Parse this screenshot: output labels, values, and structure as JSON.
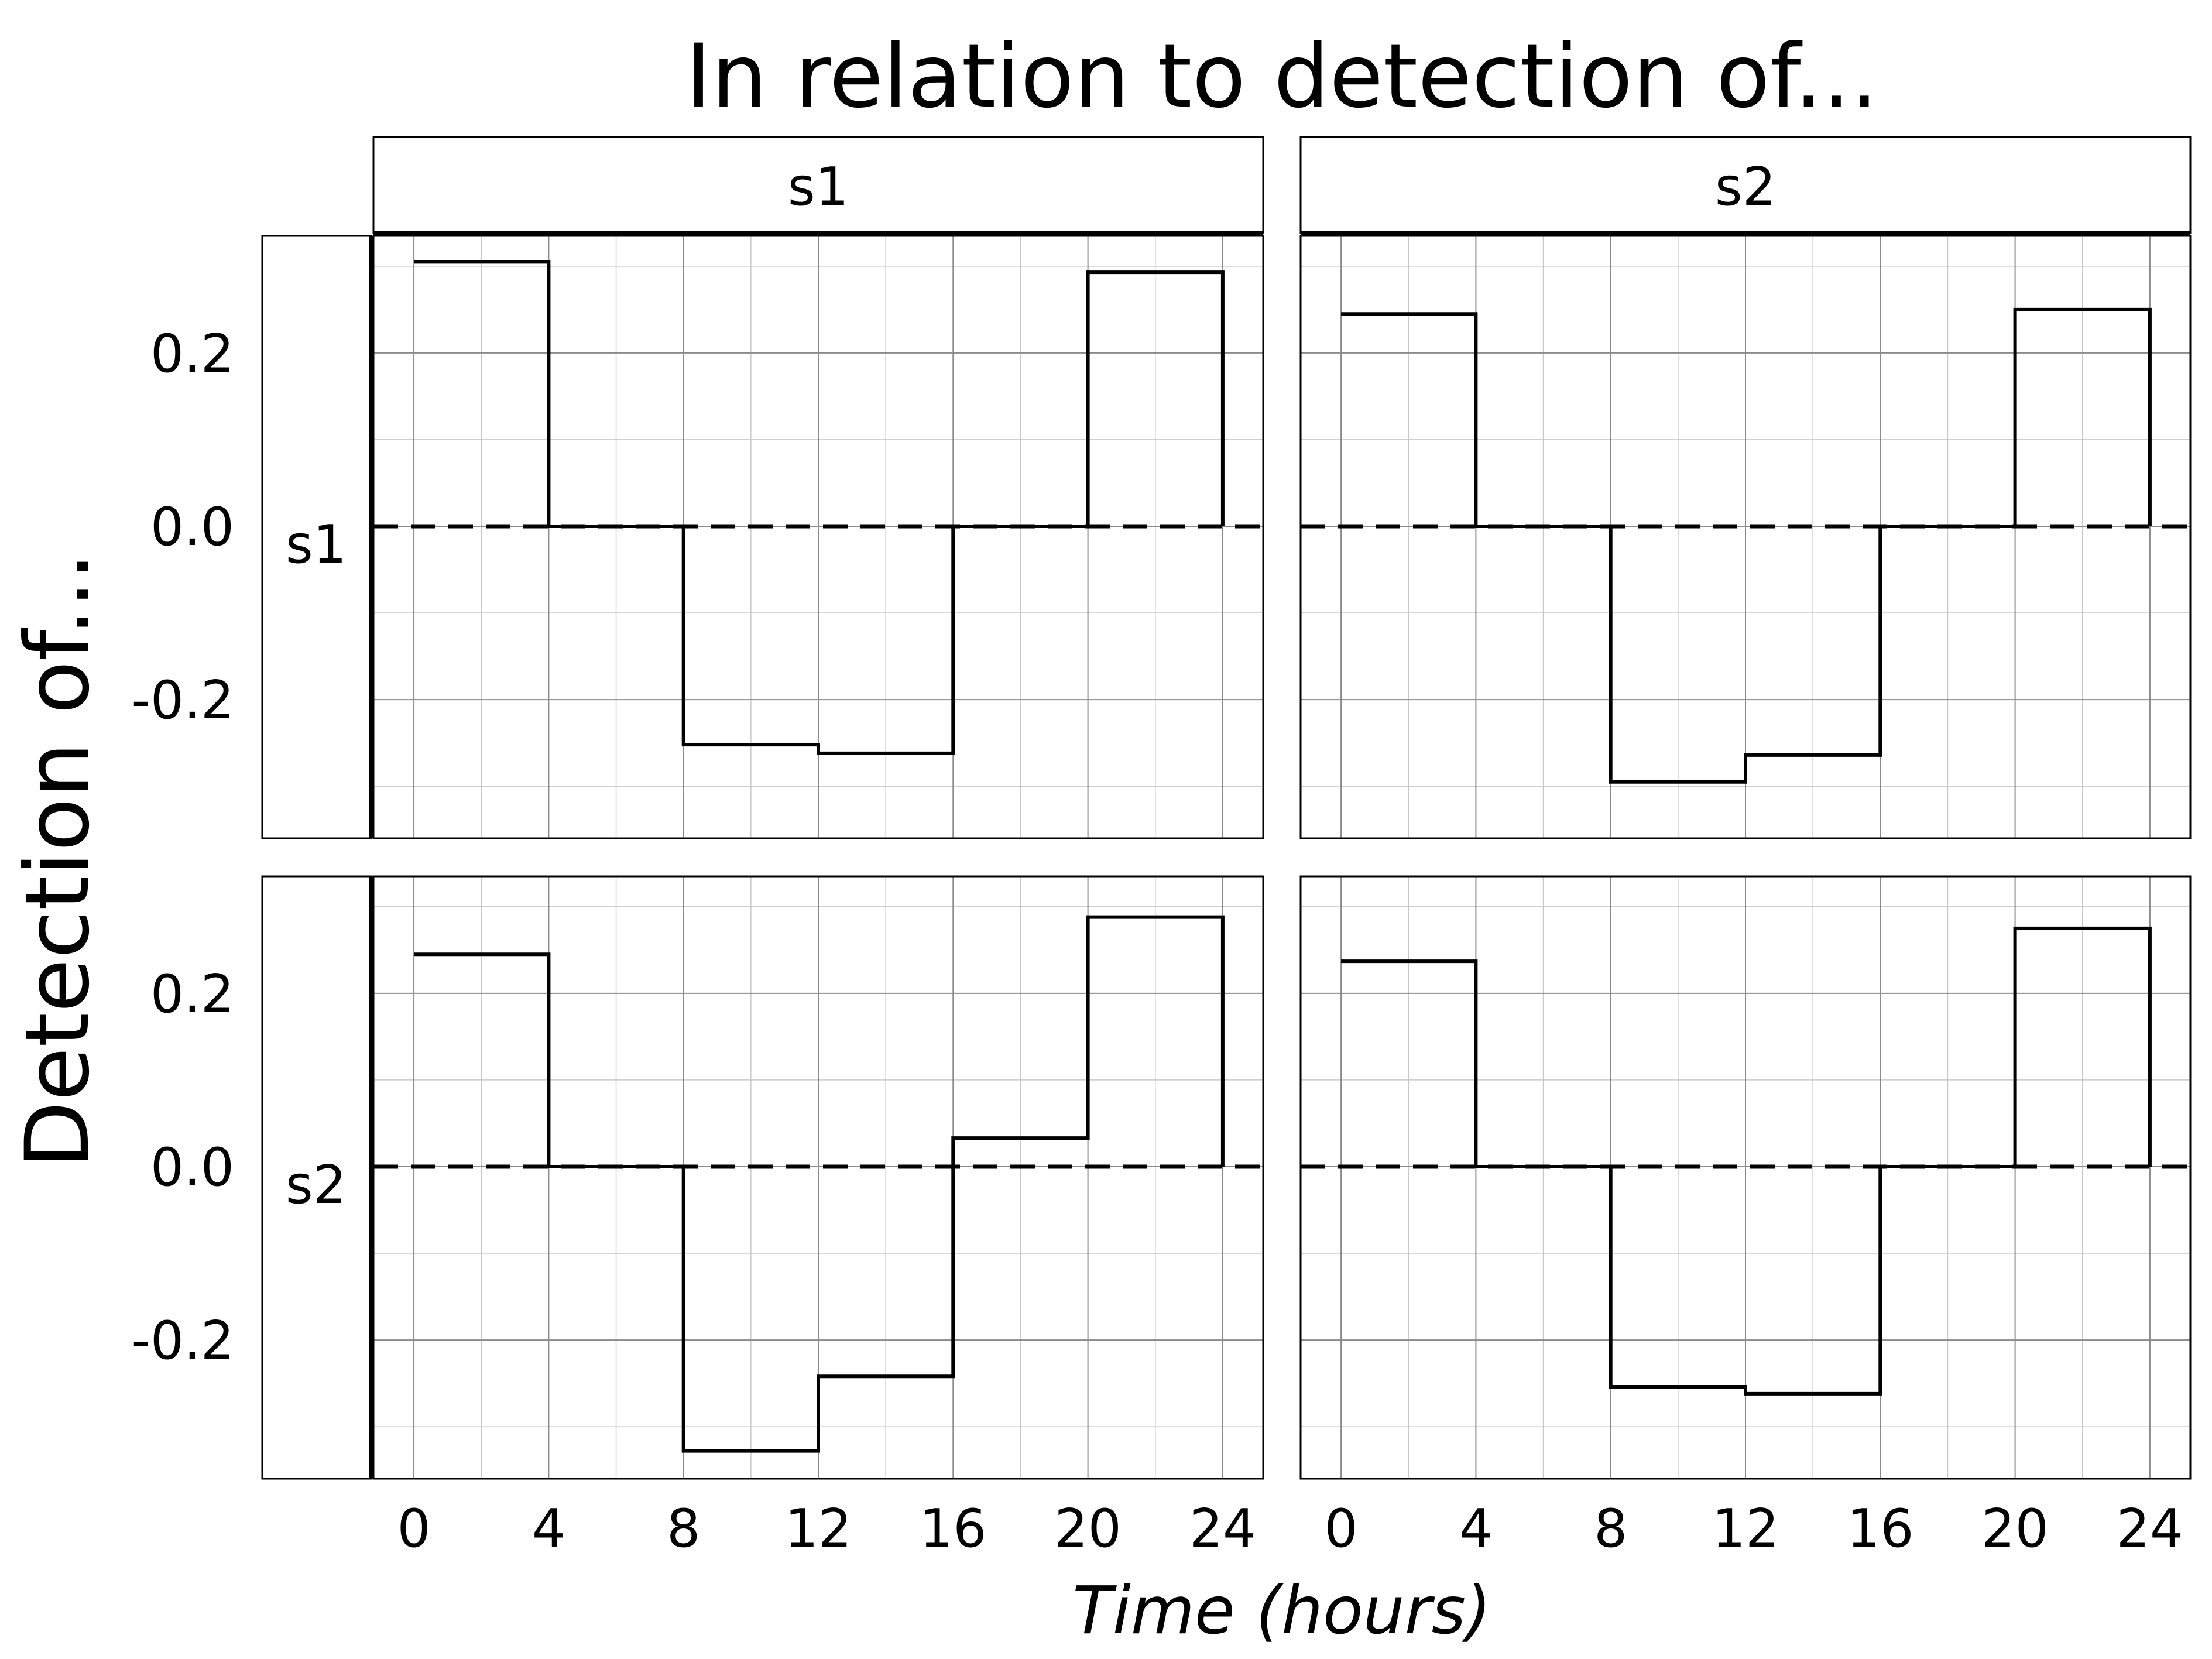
{
  "chart_data": {
    "type": "line",
    "title": "In relation to detection of...",
    "xlabel": "Time (hours)",
    "ylabel": "Detection of...",
    "column_facets": [
      "s1",
      "s2"
    ],
    "row_facets": [
      "s1",
      "s2"
    ],
    "x_ticks": [
      0,
      4,
      8,
      12,
      16,
      20,
      24
    ],
    "y_ticks": [
      0.2,
      0.0,
      -0.2
    ],
    "y_tick_labels": [
      "0.2",
      "0.0",
      "-0.2"
    ],
    "xlim": [
      -1.2,
      25.2
    ],
    "ylim": [
      -0.36,
      0.335
    ],
    "grid": true,
    "reference_line": 0.0,
    "step_edges": [
      0,
      4,
      8,
      12,
      16,
      20,
      24
    ],
    "panels": [
      {
        "row": "s1",
        "col": "s1",
        "values": [
          0.305,
          0.0,
          -0.252,
          -0.262,
          0.0,
          0.293
        ]
      },
      {
        "row": "s1",
        "col": "s2",
        "values": [
          0.245,
          0.0,
          -0.295,
          -0.264,
          0.0,
          0.25
        ]
      },
      {
        "row": "s2",
        "col": "s1",
        "values": [
          0.245,
          0.0,
          -0.328,
          -0.242,
          0.033,
          0.288
        ]
      },
      {
        "row": "s2",
        "col": "s2",
        "values": [
          0.237,
          0.0,
          -0.254,
          -0.262,
          0.0,
          0.275
        ]
      }
    ]
  }
}
